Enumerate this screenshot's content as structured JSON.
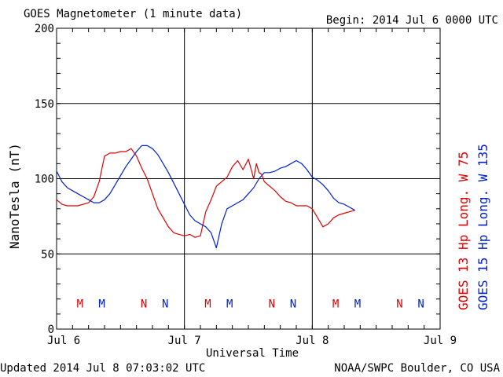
{
  "header": {
    "title": "GOES Magnetometer (1 minute data)",
    "begin": "Begin:  2014 Jul 6 0000 UTC"
  },
  "footer": {
    "updated": "Updated 2014 Jul  8 07:03:02 UTC",
    "source": "NOAA/SWPC Boulder, CO USA"
  },
  "labels": {
    "goes13": "GOES 13 Hp  Long. W 75",
    "goes15": "GOES 15 Hp  Long. W 135"
  },
  "colors": {
    "goes13": "#e00000",
    "goes15": "#0020d0",
    "axis": "#000000"
  },
  "chart_data": {
    "type": "line",
    "title": "GOES Magnetometer (1 minute data)",
    "xlabel": "Universal Time",
    "ylabel": "NanoTesla (nT)",
    "xlim": [
      0,
      72
    ],
    "ylim": [
      0,
      200
    ],
    "grid": true,
    "x_unit": "hours since 2014 Jul 6 0000 UTC",
    "x_ticks": [
      {
        "x": 0,
        "label": "Jul 6"
      },
      {
        "x": 24,
        "label": "Jul 7"
      },
      {
        "x": 48,
        "label": "Jul 8"
      },
      {
        "x": 72,
        "label": "Jul 9"
      }
    ],
    "y_ticks": [
      0,
      50,
      100,
      150,
      200
    ],
    "series": [
      {
        "name": "GOES 13 Hp  Long. W 75",
        "color": "#e00000",
        "x": [
          0,
          1,
          2,
          3,
          4,
          5,
          6,
          7,
          8,
          9,
          10,
          11,
          12,
          13,
          14,
          15,
          16,
          17,
          18,
          19,
          20,
          21,
          22,
          23,
          24,
          25,
          26,
          27,
          28,
          29,
          30,
          31,
          32,
          33,
          34,
          35,
          36,
          37,
          37.5,
          38,
          38.5,
          39,
          40,
          41,
          42,
          43,
          44,
          45,
          46,
          47,
          48,
          49,
          50,
          51,
          52,
          53,
          54,
          55,
          56
        ],
        "y": [
          86,
          83,
          82,
          82,
          82,
          83,
          84,
          88,
          98,
          115,
          117,
          117,
          118,
          118,
          120,
          115,
          107,
          100,
          90,
          80,
          74,
          68,
          64,
          63,
          62,
          63,
          61,
          62,
          78,
          86,
          95,
          98,
          101,
          108,
          112,
          106,
          113,
          100,
          110,
          104,
          103,
          98,
          95,
          92,
          88,
          85,
          84,
          82,
          82,
          82,
          80,
          74,
          68,
          70,
          74,
          76,
          77,
          78,
          79
        ]
      },
      {
        "name": "GOES 15 Hp  Long. W 135",
        "color": "#0020d0",
        "x": [
          0,
          1,
          2,
          3,
          4,
          5,
          6,
          7,
          8,
          9,
          10,
          11,
          12,
          13,
          14,
          15,
          16,
          17,
          18,
          19,
          20,
          21,
          22,
          23,
          24,
          25,
          26,
          27,
          28,
          29,
          30,
          31,
          32,
          33,
          34,
          35,
          36,
          37,
          38,
          39,
          40,
          41,
          42,
          43,
          44,
          45,
          46,
          47,
          48,
          49,
          50,
          51,
          52,
          53,
          54,
          55,
          56
        ],
        "y": [
          105,
          98,
          94,
          92,
          90,
          88,
          86,
          84,
          84,
          86,
          90,
          96,
          102,
          108,
          113,
          118,
          122,
          122,
          120,
          116,
          110,
          104,
          97,
          90,
          83,
          76,
          72,
          70,
          68,
          64,
          54,
          70,
          80,
          82,
          84,
          86,
          90,
          94,
          100,
          104,
          104,
          105,
          107,
          108,
          110,
          112,
          110,
          106,
          101,
          99,
          96,
          92,
          87,
          84,
          83,
          81,
          79
        ]
      }
    ],
    "annotations": [
      {
        "x": 4.4,
        "label": "M",
        "series": "GOES 13 Hp  Long. W 75",
        "y": 17
      },
      {
        "x": 8.5,
        "label": "M",
        "series": "GOES 15 Hp  Long. W 135",
        "y": 17
      },
      {
        "x": 16.4,
        "label": "N",
        "series": "GOES 13 Hp  Long. W 75",
        "y": 17
      },
      {
        "x": 20.4,
        "label": "N",
        "series": "GOES 15 Hp  Long. W 135",
        "y": 17
      },
      {
        "x": 28.4,
        "label": "M",
        "series": "GOES 13 Hp  Long. W 75",
        "y": 17
      },
      {
        "x": 32.5,
        "label": "M",
        "series": "GOES 15 Hp  Long. W 135",
        "y": 17
      },
      {
        "x": 40.4,
        "label": "N",
        "series": "GOES 13 Hp  Long. W 75",
        "y": 17
      },
      {
        "x": 44.4,
        "label": "N",
        "series": "GOES 15 Hp  Long. W 135",
        "y": 17
      },
      {
        "x": 52.4,
        "label": "M",
        "series": "GOES 13 Hp  Long. W 75",
        "y": 17
      },
      {
        "x": 56.5,
        "label": "M",
        "series": "GOES 15 Hp  Long. W 135",
        "y": 17
      },
      {
        "x": 64.4,
        "label": "N",
        "series": "GOES 13 Hp  Long. W 75",
        "y": 17
      },
      {
        "x": 68.4,
        "label": "N",
        "series": "GOES 15 Hp  Long. W 135",
        "y": 17
      }
    ]
  }
}
